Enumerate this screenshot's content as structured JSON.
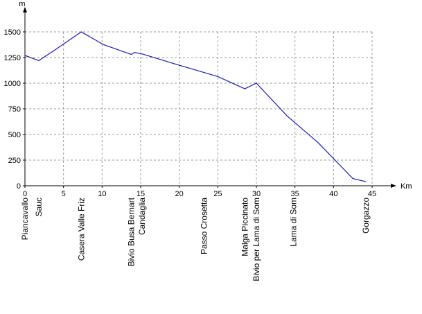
{
  "chart_data": {
    "type": "line",
    "title": "",
    "xlabel": "Km",
    "ylabel": "m",
    "xlim": [
      0,
      45
    ],
    "ylim": [
      0,
      1500
    ],
    "xticks": [
      0,
      5,
      10,
      15,
      20,
      25,
      30,
      35,
      40,
      45
    ],
    "yticks": [
      0,
      250,
      500,
      750,
      1000,
      1250,
      1500
    ],
    "grid": true,
    "line_color": "#1a1ab8",
    "series": [
      {
        "x": [
          0,
          1.8,
          4,
          7.3,
          10.2,
          13.8,
          14.2,
          15.2,
          20,
          25,
          28.5,
          30,
          34,
          38,
          42.5,
          44.2
        ],
        "y": [
          1270,
          1220,
          1330,
          1500,
          1375,
          1280,
          1300,
          1285,
          1175,
          1065,
          945,
          1000,
          680,
          420,
          70,
          40
        ]
      }
    ],
    "waypoints": [
      {
        "km": 0,
        "lines": [
          "Piancavallo"
        ]
      },
      {
        "km": 1.8,
        "lines": [
          "Sauc"
        ]
      },
      {
        "km": 7.3,
        "lines": [
          "Casera Valle Friz"
        ]
      },
      {
        "km": 13.8,
        "lines": [
          "Bivio Busa Bernart"
        ]
      },
      {
        "km": 15.2,
        "lines": [
          "Candaglia"
        ]
      },
      {
        "km": 23.2,
        "lines": [
          "Passo Crosetta"
        ]
      },
      {
        "km": 28.5,
        "lines": [
          "Malga Piccinato"
        ]
      },
      {
        "km": 30,
        "lines": [
          "Bivio per Lama di Som"
        ]
      },
      {
        "km": 34.8,
        "lines": [
          "Lama di Som"
        ]
      },
      {
        "km": 44.2,
        "lines": [
          "Gorgazzo"
        ]
      }
    ]
  }
}
